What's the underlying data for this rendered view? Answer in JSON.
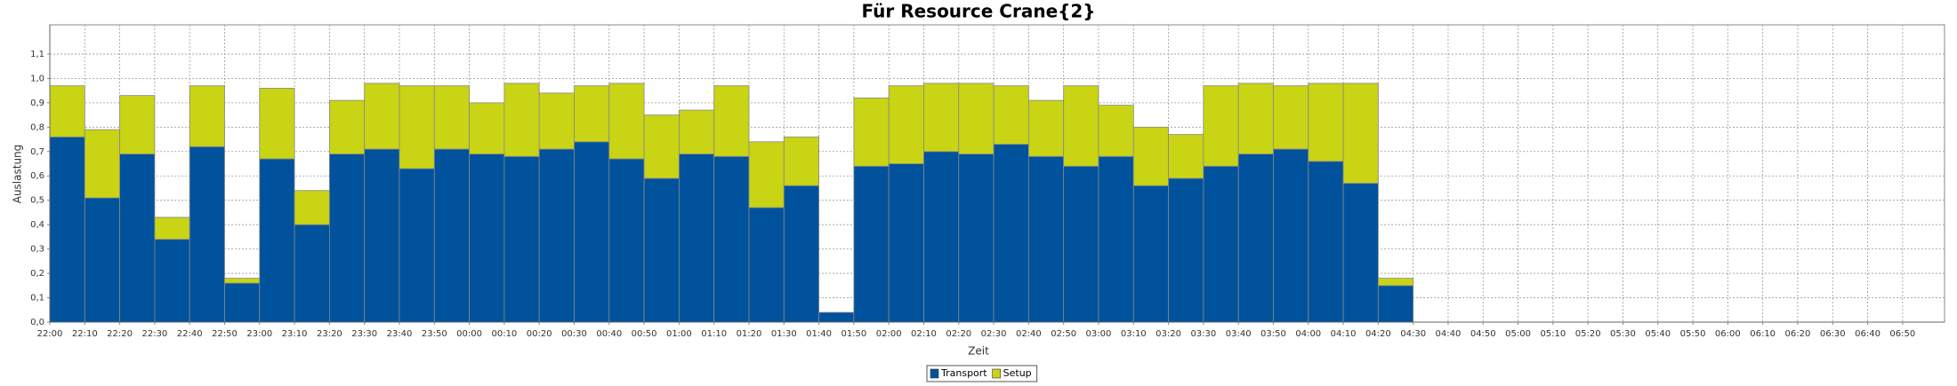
{
  "chart_data": {
    "type": "stacked_bar",
    "title": "Für Resource Crane{2}",
    "x_label": "Zeit",
    "y_label": "Auslastung",
    "categories": [
      "22:00",
      "22:10",
      "22:20",
      "22:30",
      "22:40",
      "22:50",
      "23:00",
      "23:10",
      "23:20",
      "23:30",
      "23:40",
      "23:50",
      "00:00",
      "00:10",
      "00:20",
      "00:30",
      "00:40",
      "00:50",
      "01:00",
      "01:10",
      "01:20",
      "01:30",
      "01:40",
      "01:50",
      "02:00",
      "02:10",
      "02:20",
      "02:30",
      "02:40",
      "02:50",
      "03:00",
      "03:10",
      "03:20",
      "03:30",
      "03:40",
      "03:50",
      "04:00",
      "04:10",
      "04:20",
      "04:30",
      "04:40",
      "04:50",
      "05:00",
      "05:10",
      "05:20",
      "05:30",
      "05:40",
      "05:50",
      "06:00",
      "06:10",
      "06:20",
      "06:30",
      "06:40",
      "06:50"
    ],
    "series": [
      {
        "name": "Transport",
        "color": "#00529c",
        "values": [
          0.76,
          0.51,
          0.69,
          0.34,
          0.72,
          0.16,
          0.67,
          0.4,
          0.69,
          0.71,
          0.63,
          0.71,
          0.69,
          0.68,
          0.71,
          0.74,
          0.67,
          0.59,
          0.69,
          0.68,
          0.47,
          0.56,
          0.04,
          0.64,
          0.65,
          0.7,
          0.69,
          0.73,
          0.68,
          0.64,
          0.68,
          0.56,
          0.59,
          0.64,
          0.69,
          0.71,
          0.66,
          0.57,
          0.15,
          null,
          null,
          null,
          null,
          null,
          null,
          null,
          null,
          null,
          null,
          null,
          null,
          null,
          null,
          null
        ]
      },
      {
        "name": "Setup",
        "color": "#c8d414",
        "values": [
          0.21,
          0.28,
          0.24,
          0.09,
          0.25,
          0.02,
          0.29,
          0.14,
          0.22,
          0.27,
          0.34,
          0.26,
          0.21,
          0.3,
          0.23,
          0.23,
          0.31,
          0.26,
          0.18,
          0.29,
          0.27,
          0.2,
          0,
          0.28,
          0.32,
          0.28,
          0.29,
          0.24,
          0.23,
          0.33,
          0.21,
          0.24,
          0.18,
          0.33,
          0.29,
          0.26,
          0.32,
          0.41,
          0.03,
          null,
          null,
          null,
          null,
          null,
          null,
          null,
          null,
          null,
          null,
          null,
          null,
          null,
          null,
          null
        ]
      }
    ],
    "ylim": [
      0,
      1.22
    ],
    "yticks": [
      {
        "value": 0,
        "label": "0,0"
      },
      {
        "value": 0.1,
        "label": "0,1"
      },
      {
        "value": 0.2,
        "label": "0,2"
      },
      {
        "value": 0.3,
        "label": "0,3"
      },
      {
        "value": 0.4,
        "label": "0,4"
      },
      {
        "value": 0.5,
        "label": "0,5"
      },
      {
        "value": 0.6,
        "label": "0,6"
      },
      {
        "value": 0.7,
        "label": "0,7"
      },
      {
        "value": 0.8,
        "label": "0,8"
      },
      {
        "value": 0.9,
        "label": "0,9"
      },
      {
        "value": 1.0,
        "label": "1,0"
      },
      {
        "value": 1.1,
        "label": "1,1"
      }
    ],
    "grid": true,
    "legend": "bottom"
  }
}
